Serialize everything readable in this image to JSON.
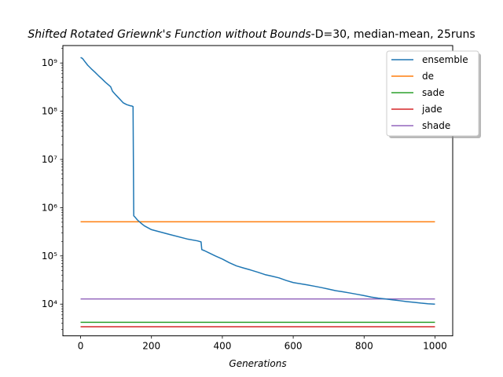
{
  "chart_data": {
    "type": "line",
    "title_italic": "Shifted Rotated Griewnk's Function without Bounds",
    "title_rest": "-D=30, median-mean, 25runs",
    "xlabel": "Generations",
    "ylabel": "",
    "xlim": [
      -50,
      1050
    ],
    "ylim": [
      2200,
      2300000000
    ],
    "yscale": "log",
    "grid": false,
    "legend_position": "top-right",
    "x_ticks": [
      0,
      200,
      400,
      600,
      800,
      1000
    ],
    "x_tick_labels": [
      "0",
      "200",
      "400",
      "600",
      "800",
      "1000"
    ],
    "y_ticks": [
      10000,
      100000,
      1000000,
      10000000,
      100000000,
      1000000000
    ],
    "y_tick_labels": [
      "10⁴",
      "10⁵",
      "10⁶",
      "10⁷",
      "10⁸",
      "10⁹"
    ],
    "series": [
      {
        "name": "ensemble",
        "color": "#1f77b4",
        "x": [
          0,
          5,
          10,
          20,
          30,
          40,
          50,
          60,
          70,
          80,
          85,
          90,
          100,
          110,
          120,
          130,
          140,
          145,
          148,
          150,
          155,
          160,
          170,
          180,
          200,
          250,
          300,
          330,
          340,
          342,
          350,
          360,
          380,
          400,
          420,
          440,
          460,
          480,
          500,
          520,
          540,
          560,
          580,
          600,
          620,
          640,
          660,
          680,
          700,
          720,
          740,
          760,
          780,
          800,
          820,
          840,
          860,
          880,
          900,
          920,
          940,
          960,
          980,
          1000
        ],
        "y": [
          1300000000,
          1250000000,
          1120000000,
          900000000,
          760000000,
          650000000,
          550000000,
          470000000,
          400000000,
          345000000,
          320000000,
          260000000,
          215000000,
          180000000,
          150000000,
          137000000,
          130000000,
          128000000,
          125000000,
          680000,
          620000,
          560000,
          480000,
          420000,
          350000,
          280000,
          225000,
          205000,
          195000,
          135000,
          128000,
          118000,
          100000,
          86000,
          72000,
          62000,
          56000,
          51000,
          46000,
          41000,
          38000,
          35000,
          31000,
          28000,
          26500,
          25000,
          23500,
          22000,
          20500,
          19000,
          18000,
          17000,
          16000,
          15000,
          14000,
          13300,
          12800,
          12300,
          11800,
          11300,
          10900,
          10500,
          10200,
          10000
        ]
      },
      {
        "name": "de",
        "color": "#ff7f0e",
        "x": [
          0,
          1000
        ],
        "y": [
          510000,
          510000
        ]
      },
      {
        "name": "sade",
        "color": "#2ca02c",
        "x": [
          0,
          1000
        ],
        "y": [
          4200,
          4200
        ]
      },
      {
        "name": "jade",
        "color": "#d62728",
        "x": [
          0,
          1000
        ],
        "y": [
          3400,
          3400
        ]
      },
      {
        "name": "shade",
        "color": "#9467bd",
        "x": [
          0,
          1000
        ],
        "y": [
          12800,
          12800
        ]
      }
    ]
  }
}
